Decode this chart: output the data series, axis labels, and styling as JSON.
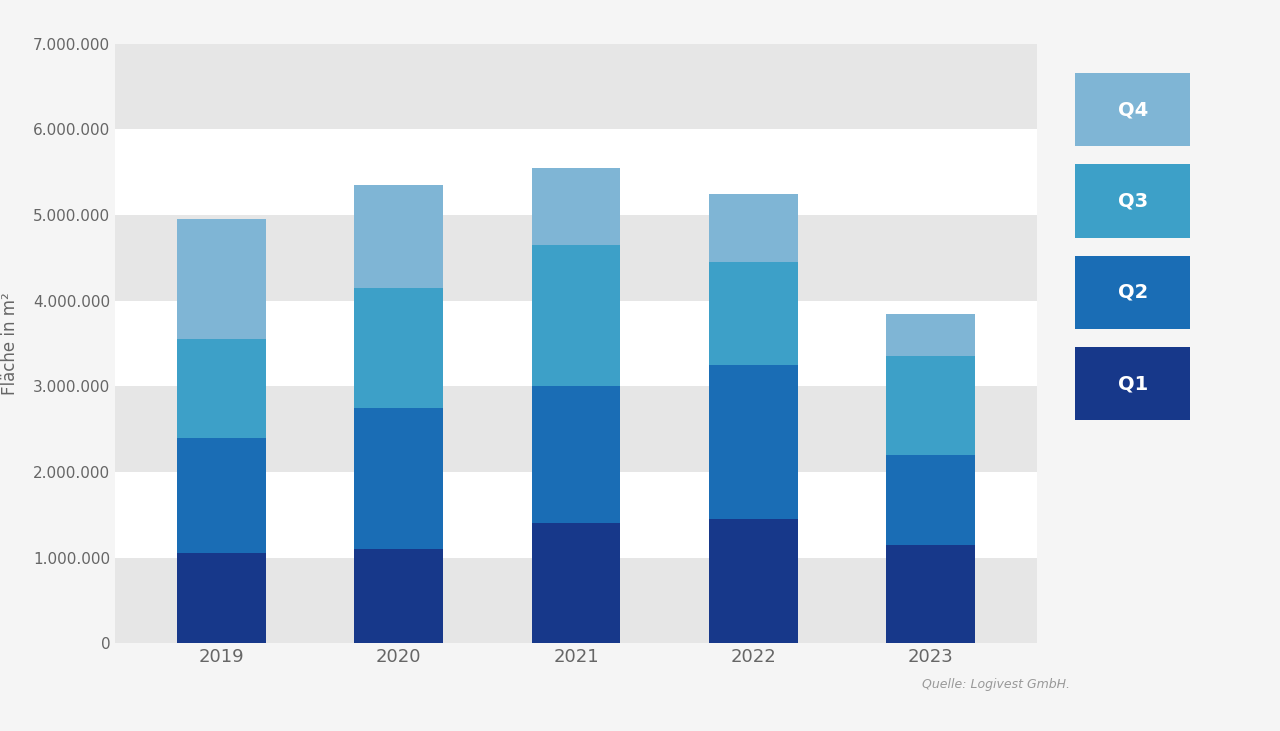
{
  "years": [
    "2019",
    "2020",
    "2021",
    "2022",
    "2023"
  ],
  "Q1": [
    1050000,
    1100000,
    1400000,
    1450000,
    1150000
  ],
  "Q2": [
    1350000,
    1650000,
    1600000,
    1800000,
    1050000
  ],
  "Q3": [
    1150000,
    1400000,
    1650000,
    1200000,
    1150000
  ],
  "Q4": [
    1400000,
    1200000,
    900000,
    800000,
    500000
  ],
  "colors": {
    "Q1": "#17388a",
    "Q2": "#1a6db5",
    "Q3": "#3da0c8",
    "Q4": "#7fb5d5"
  },
  "ylabel": "Fläche in m²",
  "ylim": [
    0,
    7000000
  ],
  "yticks": [
    0,
    1000000,
    2000000,
    3000000,
    4000000,
    5000000,
    6000000,
    7000000
  ],
  "ytick_labels": [
    "0",
    "1.000.000",
    "2.000.000",
    "3.000.000",
    "4.000.000",
    "5.000.000",
    "6.000.000",
    "7.000.000"
  ],
  "source_text": "Quelle: Logivest GmbH.",
  "background_color": "#f5f5f5",
  "plot_bg_color": "#ffffff",
  "band_color": "#e6e6e6",
  "bar_width": 0.5,
  "legend_labels": [
    "Q4",
    "Q3",
    "Q2",
    "Q1"
  ],
  "legend_colors": [
    "#7fb5d5",
    "#3da0c8",
    "#1a6db5",
    "#17388a"
  ]
}
